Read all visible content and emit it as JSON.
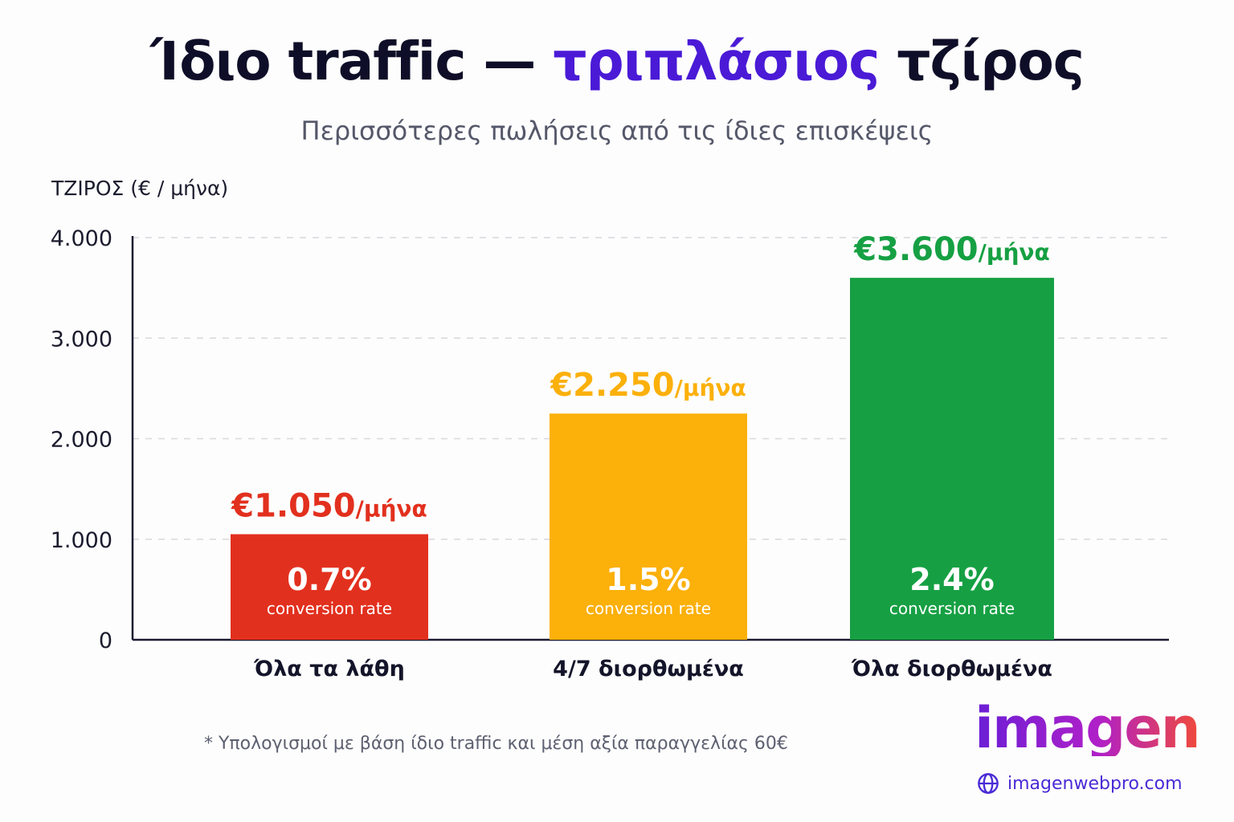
{
  "title": {
    "part1": "Ίδιο traffic — ",
    "highlight": "τριπλάσιος",
    "part2": " τζίρος"
  },
  "subtitle": "Περισσότερες πωλήσεις από τις ίδιες επισκέψεις",
  "footnote": "* Υπολογισμοί με βάση ίδιο traffic και μέση αξία παραγγελίας 60€",
  "brand": {
    "logo_text": "imagen",
    "website": "imagenwebpro.com",
    "globe_icon": "globe-icon",
    "accent_color": "#4a1ad6"
  },
  "chart_data": {
    "type": "bar",
    "ylabel": "ΤΖΙΡΟΣ (€ / μήνα)",
    "ylim": [
      0,
      4000
    ],
    "yticks": [
      "4.000",
      "3.000",
      "2.000",
      "1.000",
      "0"
    ],
    "ytick_values": [
      4000,
      3000,
      2000,
      1000,
      0
    ],
    "grid": true,
    "categories": [
      "Όλα τα λάθη",
      "4/7 διορθωμένα",
      "Όλα διορθωμένα"
    ],
    "values": [
      1050,
      2250,
      3600
    ],
    "value_labels": [
      "€1.050",
      "€2.250",
      "€3.600"
    ],
    "value_unit": "/μήνα",
    "inner_values": [
      "0.7%",
      "1.5%",
      "2.4%"
    ],
    "inner_caption": "conversion rate",
    "colors": [
      "#e2301e",
      "#fbb00a",
      "#16a043"
    ]
  }
}
